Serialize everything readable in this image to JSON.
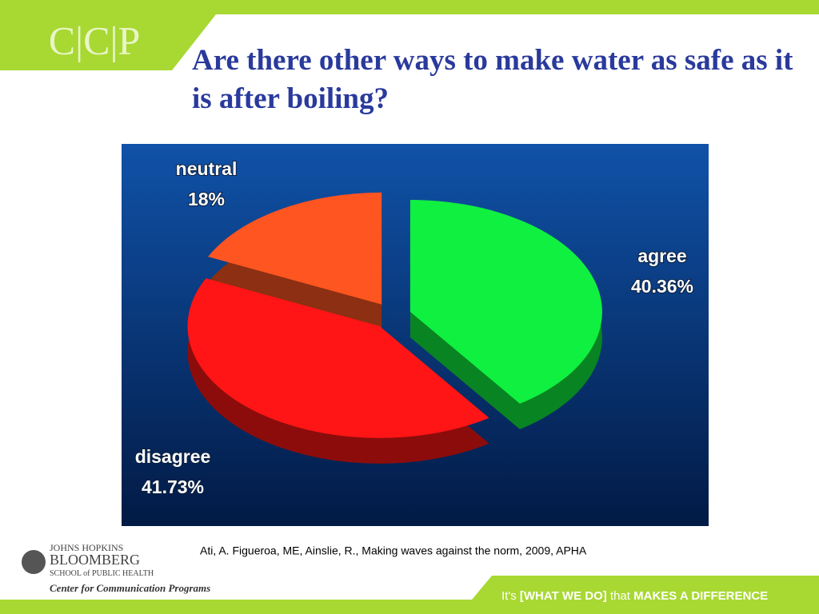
{
  "slide": {
    "logo": "C|C|P",
    "citation": "Ati, A. Figueroa, ME, Ainslie, R., Making waves against the norm, 2009, APHA",
    "school_lines": [
      "JOHNS HOPKINS",
      "BLOOMBERG",
      "SCHOOL of PUBLIC HEALTH"
    ],
    "center": "Center for Communication Programs",
    "tagline": [
      "It's",
      "[WHAT WE DO]",
      "that",
      "MAKES A DIFFERENCE"
    ]
  },
  "chart_data": {
    "type": "pie",
    "title": "Are there other ways to make water as safe as it is after boiling?",
    "categories": [
      "agree",
      "disagree",
      "neutral"
    ],
    "values": [
      40.36,
      41.73,
      18
    ],
    "value_labels": [
      "40.36%",
      "41.73%",
      "18%"
    ],
    "colors": [
      "#10f040",
      "#ff1515",
      "#ff5520"
    ]
  }
}
